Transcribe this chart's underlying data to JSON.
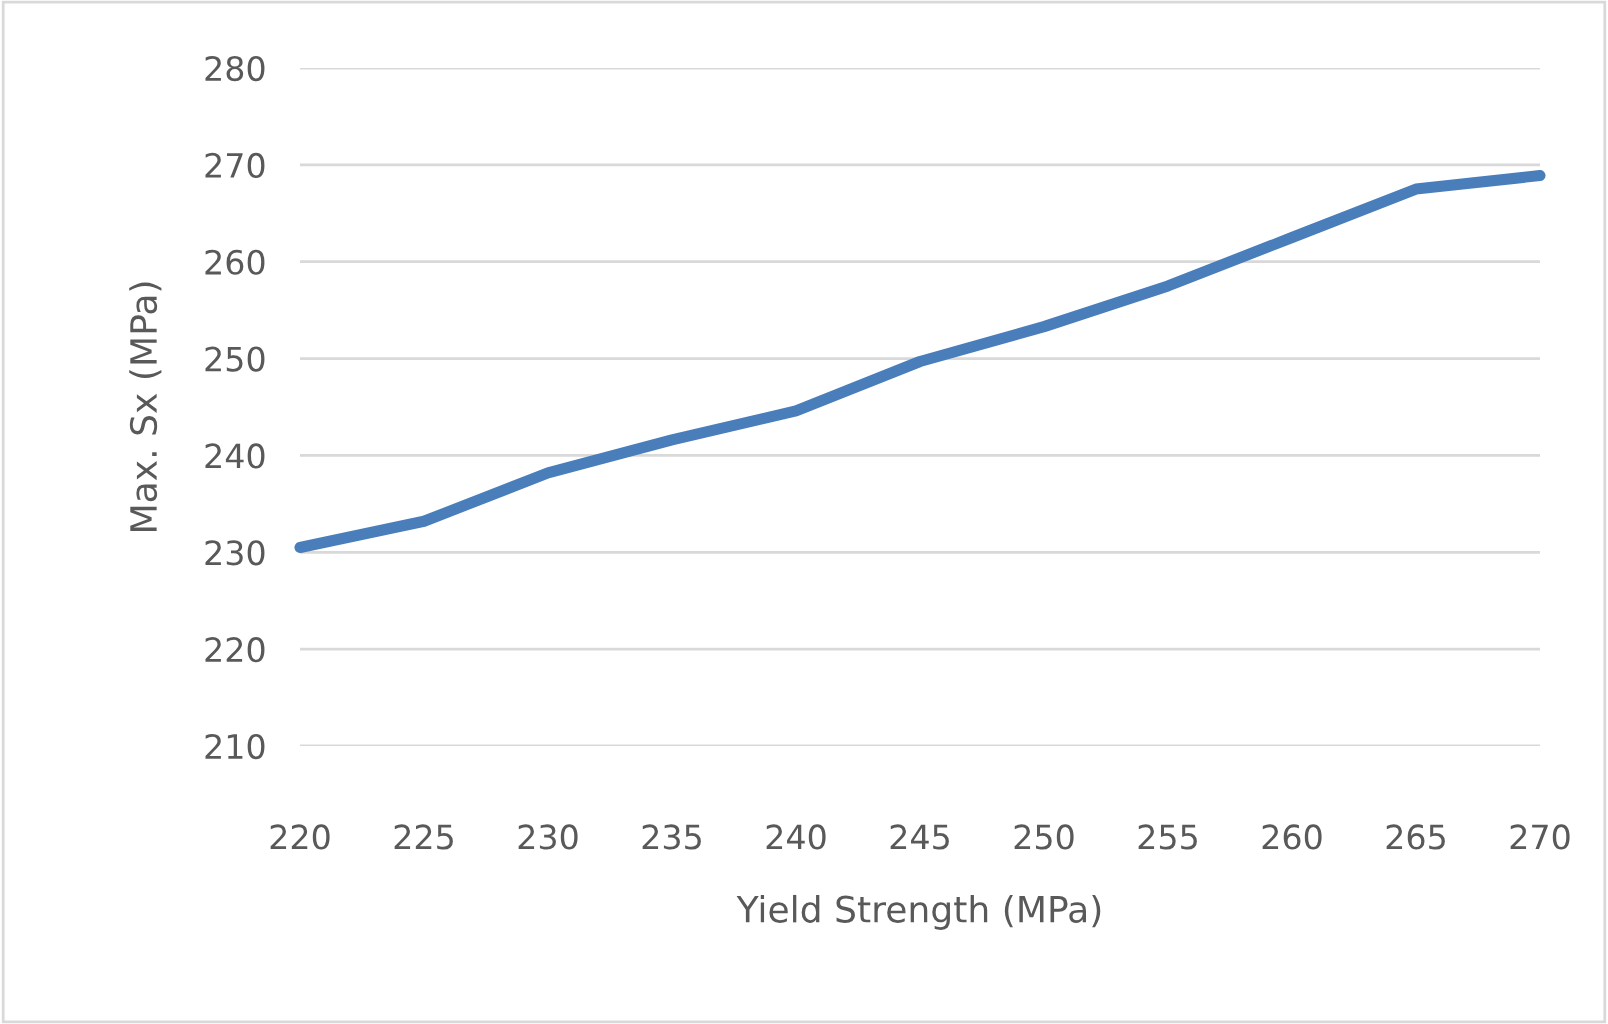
{
  "chart_data": {
    "type": "line",
    "xlabel": "Yield Strength (MPa)",
    "ylabel": "Max. Sx (MPa)",
    "x": [
      220,
      225,
      230,
      235,
      240,
      245,
      250,
      255,
      260,
      265,
      270
    ],
    "series": [
      {
        "color": "#4a7ebb",
        "values": [
          230.5,
          233.2,
          238.2,
          241.6,
          244.6,
          249.7,
          253.3,
          257.5,
          262.5,
          267.5,
          268.9
        ]
      }
    ],
    "xlim": [
      220,
      270
    ],
    "xticks": [
      220,
      225,
      230,
      235,
      240,
      245,
      250,
      255,
      260,
      265,
      270
    ],
    "ylim": [
      210,
      280
    ],
    "yticks": [
      210,
      220,
      230,
      240,
      250,
      260,
      270,
      280
    ],
    "grid": "y",
    "marker": "none",
    "line_style": "solid"
  }
}
